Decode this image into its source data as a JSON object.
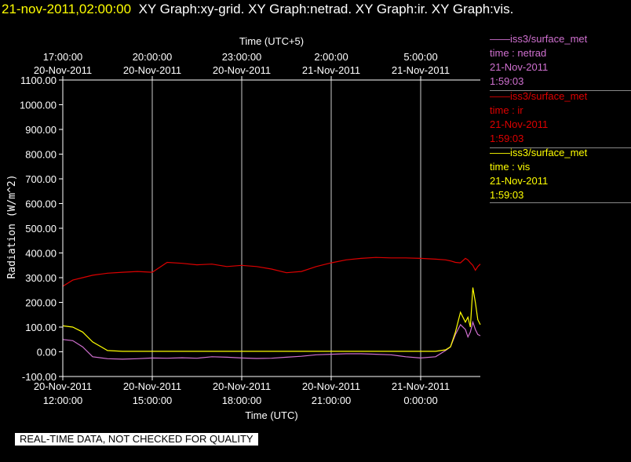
{
  "header": {
    "timestamp": "21-nov-2011,02:00:00",
    "graphs": "XY Graph:xy-grid.  XY Graph:netrad.  XY Graph:ir.  XY Graph:vis."
  },
  "quality_notice": "REAL-TIME DATA, NOT CHECKED FOR QUALITY",
  "colors": {
    "netrad": "#d070d0",
    "ir": "#dd0000",
    "vis": "#ffff00",
    "grid": "#ffffff",
    "axis": "#ffffff"
  },
  "legend": [
    {
      "title": "——iss3/surface_met",
      "var": "time : netrad",
      "date": "21-Nov-2011",
      "time": "1:59:03",
      "color": "#d070d0"
    },
    {
      "title": "——iss3/surface_met",
      "var": "time : ir",
      "date": "21-Nov-2011",
      "time": "1:59:03",
      "color": "#dd0000"
    },
    {
      "title": "——iss3/surface_met",
      "var": "time : vis",
      "date": "21-Nov-2011",
      "time": "1:59:03",
      "color": "#ffff00"
    }
  ],
  "chart_data": {
    "type": "line",
    "xlabel": "Time (UTC)",
    "x2label": "Time (UTC+5)",
    "ylabel": "Radiation (W/m^2)",
    "ylim": [
      -100,
      1100
    ],
    "xlim": [
      "2011-11-20 12:00:00",
      "2011-11-21 02:00:00"
    ],
    "grid": "vertical",
    "y_ticks": [
      "-100.00",
      "0.00",
      "100.00",
      "200.00",
      "300.00",
      "400.00",
      "500.00",
      "600.00",
      "700.00",
      "800.00",
      "900.00",
      "1000.00",
      "1100.00"
    ],
    "x_ticks": [
      {
        "date": "20-Nov-2011",
        "time": "12:00:00"
      },
      {
        "date": "20-Nov-2011",
        "time": "15:00:00"
      },
      {
        "date": "20-Nov-2011",
        "time": "18:00:00"
      },
      {
        "date": "20-Nov-2011",
        "time": "21:00:00"
      },
      {
        "date": "21-Nov-2011",
        "time": "0:00:00"
      }
    ],
    "x2_ticks": [
      {
        "time": "17:00:00",
        "date": "20-Nov-2011"
      },
      {
        "time": "20:00:00",
        "date": "20-Nov-2011"
      },
      {
        "time": "23:00:00",
        "date": "20-Nov-2011"
      },
      {
        "time": "2:00:00",
        "date": "21-Nov-2011"
      },
      {
        "time": "5:00:00",
        "date": "21-Nov-2011"
      }
    ],
    "x": [
      "2011-11-20 12:00",
      "2011-11-20 12:20",
      "2011-11-20 12:40",
      "2011-11-20 13:00",
      "2011-11-20 13:30",
      "2011-11-20 14:00",
      "2011-11-20 14:30",
      "2011-11-20 15:00",
      "2011-11-20 15:30",
      "2011-11-20 16:00",
      "2011-11-20 16:30",
      "2011-11-20 17:00",
      "2011-11-20 17:30",
      "2011-11-20 18:00",
      "2011-11-20 18:30",
      "2011-11-20 19:00",
      "2011-11-20 19:30",
      "2011-11-20 20:00",
      "2011-11-20 20:30",
      "2011-11-20 21:00",
      "2011-11-20 21:30",
      "2011-11-20 22:00",
      "2011-11-20 22:30",
      "2011-11-20 23:00",
      "2011-11-20 23:30",
      "2011-11-21 00:00",
      "2011-11-21 00:30",
      "2011-11-21 00:50",
      "2011-11-21 01:00",
      "2011-11-21 01:10",
      "2011-11-21 01:20",
      "2011-11-21 01:30",
      "2011-11-21 01:35",
      "2011-11-21 01:40",
      "2011-11-21 01:45",
      "2011-11-21 01:50",
      "2011-11-21 01:55",
      "2011-11-21 02:00"
    ],
    "series": [
      {
        "name": "time : netrad",
        "color": "#d070d0",
        "values": [
          50,
          45,
          20,
          -20,
          -28,
          -30,
          -28,
          -25,
          -26,
          -24,
          -26,
          -20,
          -22,
          -25,
          -27,
          -26,
          -22,
          -18,
          -12,
          -10,
          -8,
          -8,
          -10,
          -12,
          -20,
          -25,
          -20,
          5,
          20,
          70,
          110,
          90,
          60,
          80,
          120,
          90,
          70,
          65
        ]
      },
      {
        "name": "time : ir",
        "color": "#dd0000",
        "values": [
          265,
          290,
          300,
          310,
          318,
          322,
          325,
          322,
          362,
          358,
          352,
          355,
          345,
          350,
          345,
          335,
          320,
          325,
          345,
          360,
          372,
          378,
          382,
          380,
          380,
          378,
          375,
          372,
          368,
          362,
          360,
          378,
          372,
          360,
          350,
          330,
          345,
          355
        ]
      },
      {
        "name": "time : vis",
        "color": "#ffff00",
        "values": [
          105,
          100,
          80,
          40,
          5,
          2,
          2,
          2,
          2,
          2,
          2,
          2,
          2,
          2,
          2,
          2,
          2,
          2,
          2,
          2,
          2,
          2,
          2,
          2,
          2,
          2,
          2,
          8,
          20,
          80,
          160,
          120,
          140,
          100,
          260,
          200,
          130,
          110
        ]
      }
    ]
  }
}
